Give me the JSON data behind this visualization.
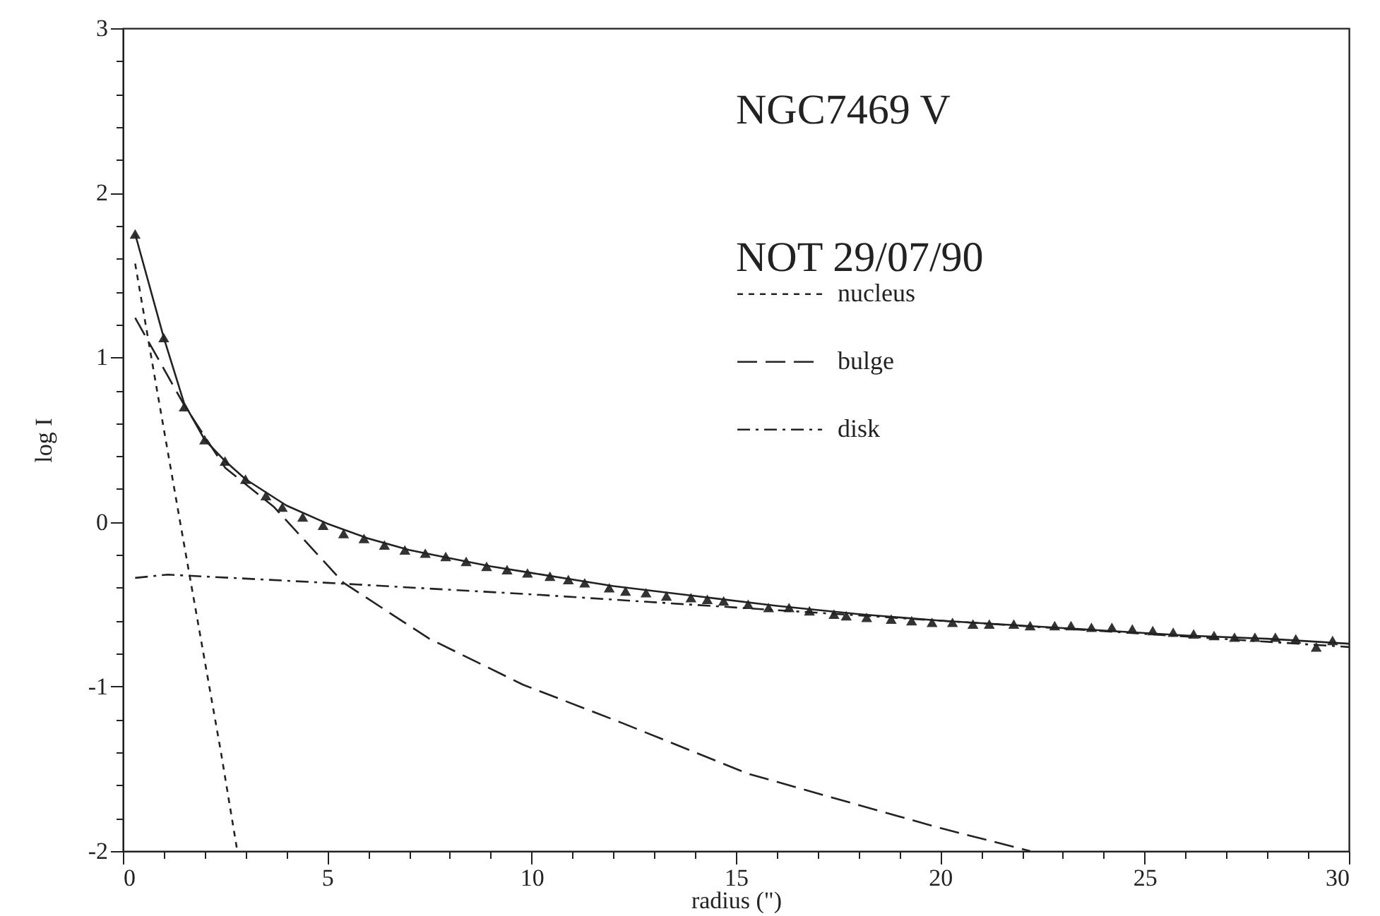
{
  "chart_data": {
    "type": "line",
    "xlabel": "radius (\")",
    "ylabel": "log I",
    "annotations": [
      "NGC7469 V",
      "NOT 29/07/90"
    ],
    "xlim": [
      0,
      30
    ],
    "ylim": [
      -2,
      3
    ],
    "xticks": [
      0,
      {
        "value": 1,
        "label": null
      },
      {
        "value": 2,
        "label": null
      },
      {
        "value": 3,
        "label": null
      },
      {
        "value": 4,
        "label": null
      },
      5,
      {
        "value": 6,
        "label": null
      },
      {
        "value": 7,
        "label": null
      },
      {
        "value": 8,
        "label": null
      },
      {
        "value": 9,
        "label": null
      },
      10,
      {
        "value": 11,
        "label": null
      },
      {
        "value": 12,
        "label": null
      },
      {
        "value": 13,
        "label": null
      },
      {
        "value": 14,
        "label": null
      },
      15,
      {
        "value": 16,
        "label": null
      },
      {
        "value": 17,
        "label": null
      },
      {
        "value": 18,
        "label": null
      },
      {
        "value": 19,
        "label": null
      },
      20,
      {
        "value": 21,
        "label": null
      },
      {
        "value": 22,
        "label": null
      },
      {
        "value": 23,
        "label": null
      },
      {
        "value": 24,
        "label": null
      },
      25,
      {
        "value": 26,
        "label": null
      },
      {
        "value": 27,
        "label": null
      },
      {
        "value": 28,
        "label": null
      },
      {
        "value": 29,
        "label": null
      },
      30
    ],
    "yticks": [
      -2,
      {
        "value": -1.8,
        "label": null
      },
      {
        "value": -1.6,
        "label": null
      },
      {
        "value": -1.4,
        "label": null
      },
      {
        "value": -1.2,
        "label": null
      },
      -1,
      {
        "value": -0.8,
        "label": null
      },
      {
        "value": -0.6,
        "label": null
      },
      {
        "value": -0.4,
        "label": null
      },
      {
        "value": -0.2,
        "label": null
      },
      0,
      {
        "value": 0.2,
        "label": null
      },
      {
        "value": 0.4,
        "label": null
      },
      {
        "value": 0.6,
        "label": null
      },
      {
        "value": 0.8,
        "label": null
      },
      1,
      {
        "value": 1.2,
        "label": null
      },
      {
        "value": 1.4,
        "label": null
      },
      {
        "value": 1.6,
        "label": null
      },
      {
        "value": 1.8,
        "label": null
      },
      2,
      {
        "value": 2.2,
        "label": null
      },
      {
        "value": 2.4,
        "label": null
      },
      {
        "value": 2.6,
        "label": null
      },
      {
        "value": 2.8,
        "label": null
      },
      3
    ],
    "grid": false,
    "legend": "top right",
    "series": [
      {
        "type": "scatter",
        "marker": "triangle",
        "color": "#333333",
        "x": [
          0.3,
          1.0,
          1.5,
          2.0,
          2.5,
          3.0,
          3.5,
          3.9,
          4.4,
          4.9,
          5.4,
          5.9,
          6.4,
          6.9,
          7.4,
          7.9,
          8.4,
          8.9,
          9.4,
          9.9,
          10.45,
          10.9,
          11.3,
          11.9,
          12.3,
          12.8,
          13.3,
          13.9,
          14.3,
          14.7,
          15.3,
          15.8,
          16.3,
          16.8,
          17.4,
          17.7,
          18.2,
          18.8,
          19.3,
          19.8,
          20.3,
          20.8,
          21.2,
          21.8,
          22.2,
          22.8,
          23.2,
          23.7,
          24.2,
          24.7,
          25.2,
          25.7,
          26.2,
          26.7,
          27.2,
          27.7,
          28.2,
          28.7,
          29.2,
          29.6
        ],
        "values": [
          1.75,
          1.12,
          0.7,
          0.5,
          0.37,
          0.26,
          0.16,
          0.09,
          0.03,
          -0.02,
          -0.07,
          -0.1,
          -0.14,
          -0.17,
          -0.19,
          -0.21,
          -0.24,
          -0.27,
          -0.29,
          -0.31,
          -0.33,
          -0.35,
          -0.37,
          -0.4,
          -0.42,
          -0.43,
          -0.45,
          -0.46,
          -0.47,
          -0.48,
          -0.5,
          -0.52,
          -0.52,
          -0.54,
          -0.56,
          -0.57,
          -0.58,
          -0.59,
          -0.6,
          -0.61,
          -0.61,
          -0.62,
          -0.62,
          -0.62,
          -0.63,
          -0.63,
          -0.63,
          -0.64,
          -0.64,
          -0.65,
          -0.66,
          -0.67,
          -0.68,
          -0.69,
          -0.7,
          -0.7,
          -0.7,
          -0.71,
          -0.76,
          -0.72
        ]
      },
      {
        "line_style": "solid",
        "color": "#222222",
        "x": [
          0.3,
          1,
          1.5,
          2,
          2.5,
          3,
          4,
          5,
          6,
          7,
          8,
          9,
          10,
          12,
          14,
          16,
          18,
          20,
          22,
          24,
          26,
          28,
          30
        ],
        "values": [
          1.75,
          1.12,
          0.72,
          0.5,
          0.37,
          0.26,
          0.1,
          -0.01,
          -0.1,
          -0.17,
          -0.22,
          -0.27,
          -0.31,
          -0.39,
          -0.45,
          -0.51,
          -0.56,
          -0.6,
          -0.63,
          -0.66,
          -0.69,
          -0.71,
          -0.74
        ]
      },
      {
        "name": "nucleus",
        "line_style": "dotted",
        "color": "#222222",
        "x": [
          0.3,
          0.8,
          1.4,
          1.9,
          2.4,
          2.8
        ],
        "values": [
          1.57,
          0.85,
          0,
          -0.7,
          -1.4,
          -2
        ]
      },
      {
        "name": "bulge",
        "line_style": "dashed",
        "color": "#222222",
        "x": [
          0.3,
          1.5,
          2.5,
          3.7,
          5.4,
          7.5,
          9.8,
          12.2,
          15.3,
          18,
          20,
          22.2
        ],
        "values": [
          1.24,
          0.71,
          0.33,
          0.09,
          -0.37,
          -0.71,
          -0.99,
          -1.22,
          -1.53,
          -1.72,
          -1.86,
          -2
        ]
      },
      {
        "name": "disk",
        "line_style": "dashdot",
        "color": "#222222",
        "x": [
          0.3,
          1.1,
          5,
          10,
          15,
          20,
          25,
          30
        ],
        "values": [
          -0.34,
          -0.32,
          -0.37,
          -0.44,
          -0.52,
          -0.6,
          -0.68,
          -0.76
        ]
      }
    ]
  }
}
